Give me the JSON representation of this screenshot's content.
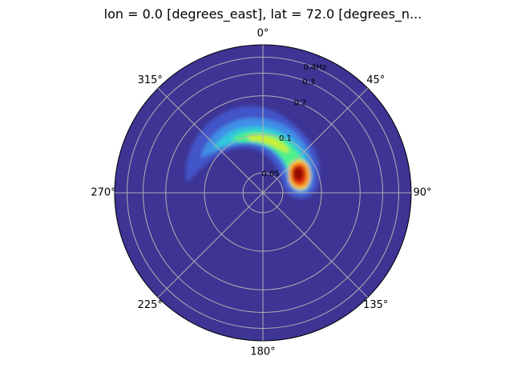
{
  "chart_data": {
    "type": "polar-contour",
    "title": "lon = 0.0 [degrees_east], lat = 72.0 [degrees_n...",
    "angular_axis": {
      "zero_location": "top",
      "direction": "clockwise",
      "ticks": [
        0,
        45,
        90,
        135,
        180,
        225,
        270,
        315
      ],
      "tick_labels": [
        "0°",
        "45°",
        "90°",
        "135°",
        "180°",
        "225°",
        "270°",
        "315°"
      ]
    },
    "radial_axis": {
      "scale": "log",
      "range": [
        0.035,
        0.5
      ],
      "ticks": [
        0.05,
        0.1,
        0.2,
        0.3,
        0.4
      ],
      "tick_labels": [
        "0.05",
        "0.1",
        "0.2",
        "0.3",
        "0.4Hz"
      ],
      "label_direction_deg": 22.5
    },
    "grid": true,
    "colormap": "turbo",
    "background_color": "#3d3494",
    "spectral_peaks": [
      {
        "direction_deg": 45,
        "frequency": 0.065,
        "relative_energy": 1.0
      },
      {
        "direction_deg": 0,
        "frequency": 0.135,
        "relative_energy": 0.6
      },
      {
        "direction_deg": 315,
        "frequency": 0.22,
        "relative_energy": 0.3
      }
    ]
  }
}
